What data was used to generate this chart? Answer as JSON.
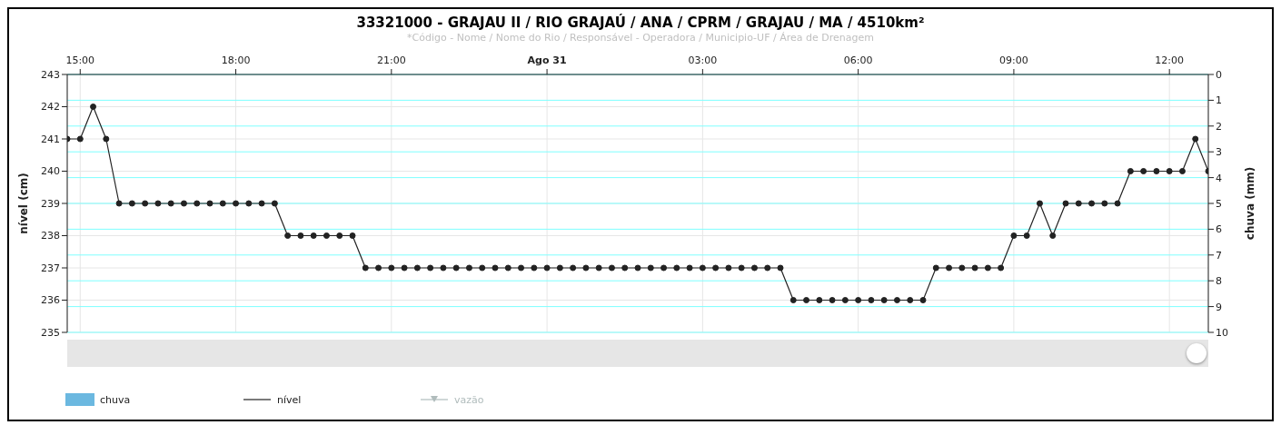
{
  "chart_data": {
    "type": "line",
    "title": "33321000 - GRAJAU II / RIO GRAJAÚ / ANA / CPRM / GRAJAU / MA / 4510km²",
    "subtitle": "*Código - Nome / Nome do Rio / Responsável - Operadora / Municipio-UF / Área de Drenagem",
    "ylabel": "nível (cm)",
    "y2label": "chuva (mm)",
    "x": [
      "--08-30T14:45",
      "--08-30T15:00",
      "--08-30T15:15",
      "--08-30T15:30",
      "--08-30T15:45",
      "--08-30T16:00",
      "--08-30T16:15",
      "--08-30T16:30",
      "--08-30T16:45",
      "--08-30T17:00",
      "--08-30T17:15",
      "--08-30T17:30",
      "--08-30T17:45",
      "--08-30T18:00",
      "--08-30T18:15",
      "--08-30T18:30",
      "--08-30T18:45",
      "--08-30T19:00",
      "--08-30T19:15",
      "--08-30T19:30",
      "--08-30T19:45",
      "--08-30T20:00",
      "--08-30T20:15",
      "--08-30T20:30",
      "--08-30T20:45",
      "--08-30T21:00",
      "--08-30T21:15",
      "--08-30T21:30",
      "--08-30T21:45",
      "--08-30T22:00",
      "--08-30T22:15",
      "--08-30T22:30",
      "--08-30T22:45",
      "--08-30T23:00",
      "--08-30T23:15",
      "--08-30T23:30",
      "--08-30T23:45",
      "--08-31T00:00",
      "--08-31T00:15",
      "--08-31T00:30",
      "--08-31T00:45",
      "--08-31T01:00",
      "--08-31T01:15",
      "--08-31T01:30",
      "--08-31T01:45",
      "--08-31T02:00",
      "--08-31T02:15",
      "--08-31T02:30",
      "--08-31T02:45",
      "--08-31T03:00",
      "--08-31T03:15",
      "--08-31T03:30",
      "--08-31T03:45",
      "--08-31T04:00",
      "--08-31T04:15",
      "--08-31T04:30",
      "--08-31T04:45",
      "--08-31T05:00",
      "--08-31T05:15",
      "--08-31T05:30",
      "--08-31T05:45",
      "--08-31T06:00",
      "--08-31T06:15",
      "--08-31T06:30",
      "--08-31T06:45",
      "--08-31T07:00",
      "--08-31T07:15",
      "--08-31T07:30",
      "--08-31T07:45",
      "--08-31T08:00",
      "--08-31T08:15",
      "--08-31T08:30",
      "--08-31T08:45",
      "--08-31T09:00",
      "--08-31T09:15",
      "--08-31T09:30",
      "--08-31T09:45",
      "--08-31T10:00",
      "--08-31T10:15",
      "--08-31T10:30",
      "--08-31T10:45",
      "--08-31T11:00",
      "--08-31T11:15",
      "--08-31T11:30",
      "--08-31T11:45",
      "--08-31T12:00",
      "--08-31T12:15",
      "--08-31T12:30",
      "--08-31T12:45"
    ],
    "series": [
      {
        "name": "chuva",
        "type": "bar",
        "axis": "y2",
        "color": "#6bb8e0",
        "values": [
          0,
          0,
          0,
          0,
          0,
          0,
          0,
          0,
          0,
          0,
          0,
          0,
          0,
          0,
          0,
          0,
          0,
          0,
          0,
          0,
          0,
          0,
          0,
          0,
          0,
          0,
          0,
          0,
          0,
          0,
          0,
          0,
          0,
          0,
          0,
          0,
          0,
          0,
          0,
          0,
          0,
          0,
          0,
          0,
          0,
          0,
          0,
          0,
          0,
          0,
          0,
          0,
          0,
          0,
          0,
          0,
          0,
          0,
          0,
          0,
          0,
          0,
          0,
          0,
          0,
          0,
          0,
          0,
          0,
          0,
          0,
          0,
          0,
          0,
          0,
          0,
          0,
          0,
          0,
          0,
          0,
          0,
          0,
          0,
          0,
          0,
          0,
          0,
          0
        ]
      },
      {
        "name": "nível",
        "color": "#222222",
        "marker": "circle",
        "values": [
          241,
          241,
          242,
          241,
          239,
          239,
          239,
          239,
          239,
          239,
          239,
          239,
          239,
          239,
          239,
          239,
          239,
          238,
          238,
          238,
          238,
          238,
          238,
          237,
          237,
          237,
          237,
          237,
          237,
          237,
          237,
          237,
          237,
          237,
          237,
          237,
          237,
          237,
          237,
          237,
          237,
          237,
          237,
          237,
          237,
          237,
          237,
          237,
          237,
          237,
          237,
          237,
          237,
          237,
          237,
          237,
          236,
          236,
          236,
          236,
          236,
          236,
          236,
          236,
          236,
          236,
          236,
          237,
          237,
          237,
          237,
          237,
          237,
          238,
          238,
          239,
          238,
          239,
          239,
          239,
          239,
          239,
          240,
          240,
          240,
          240,
          240,
          241,
          240
        ]
      },
      {
        "name": "vazão",
        "type": "line",
        "color": "#b0bcbc",
        "marker": "triangle",
        "values": [
          null,
          null,
          null,
          null,
          null,
          null,
          null,
          null,
          null,
          null,
          null,
          null,
          null,
          null,
          null,
          null,
          null,
          null,
          null,
          null,
          null,
          null,
          null,
          null,
          null,
          null,
          null,
          null,
          null,
          null,
          null,
          null,
          null,
          null,
          null,
          null,
          null,
          null,
          null,
          null,
          null,
          null,
          null,
          null,
          null,
          null,
          null,
          null,
          null,
          null,
          null,
          null,
          null,
          null,
          null,
          null,
          null,
          null,
          null,
          null,
          null,
          null,
          null,
          null,
          null,
          null,
          null,
          null,
          null,
          null,
          null,
          null,
          null,
          null,
          null,
          null,
          null,
          null,
          null,
          null,
          null,
          null,
          null,
          null,
          null,
          null,
          null,
          null,
          null
        ]
      }
    ],
    "xlim": [
      "--08-30T14:45",
      "--08-31T12:45"
    ],
    "xticks": [
      {
        "value": "--08-30T15:00",
        "label": "15:00"
      },
      {
        "value": "--08-30T18:00",
        "label": "18:00"
      },
      {
        "value": "--08-30T21:00",
        "label": "21:00"
      },
      {
        "value": "--08-31T00:00",
        "label": "Ago 31"
      },
      {
        "value": "--08-31T03:00",
        "label": "03:00"
      },
      {
        "value": "--08-31T06:00",
        "label": "06:00"
      },
      {
        "value": "--08-31T09:00",
        "label": "09:00"
      },
      {
        "value": "--08-31T12:00",
        "label": "12:00"
      }
    ],
    "ylim": [
      235,
      243
    ],
    "yticks": [
      235,
      236,
      237,
      238,
      239,
      240,
      241,
      242,
      243
    ],
    "y2lim": [
      10,
      0
    ],
    "y2ticks": [
      0,
      1,
      2,
      3,
      4,
      5,
      6,
      7,
      8,
      9,
      10
    ],
    "grid": true,
    "legend": "bottom left"
  }
}
